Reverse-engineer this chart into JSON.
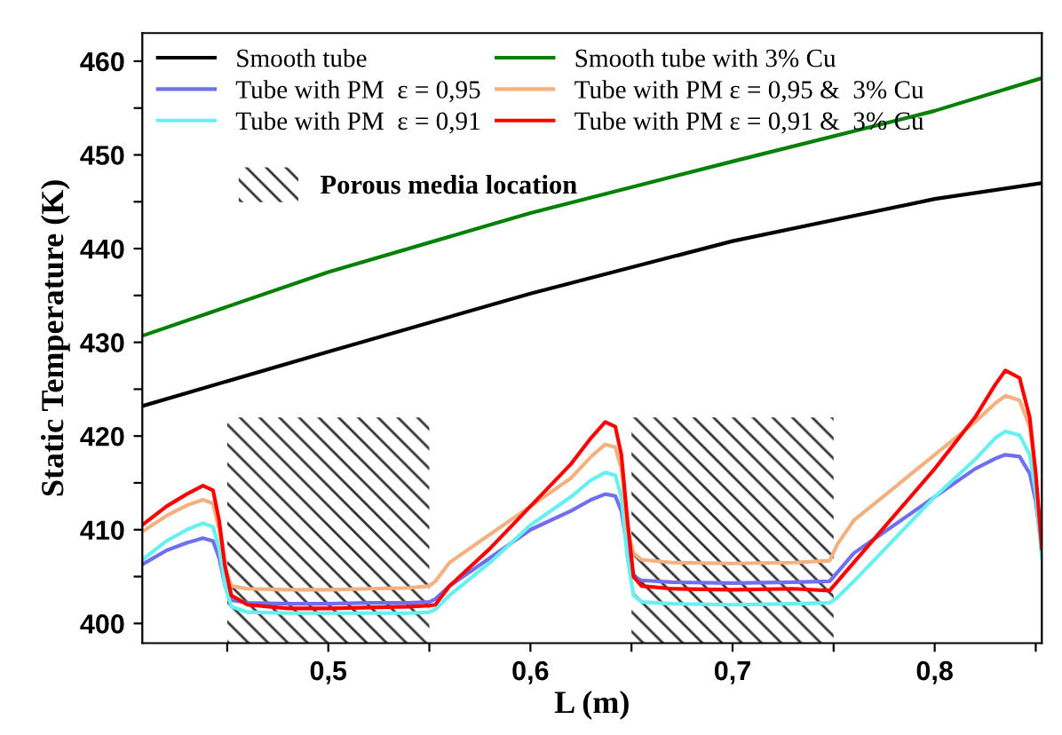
{
  "chart_data": {
    "type": "line",
    "xlabel": "L (m)",
    "ylabel": "Static Temperature (K)",
    "xlim": [
      0.408,
      0.853
    ],
    "ylim": [
      397.9,
      463
    ],
    "xticks": [
      {
        "value": 0.45,
        "label": null
      },
      {
        "value": 0.5,
        "label": "0,5"
      },
      {
        "value": 0.55,
        "label": null
      },
      {
        "value": 0.6,
        "label": "0,6"
      },
      {
        "value": 0.65,
        "label": null
      },
      {
        "value": 0.7,
        "label": "0,7"
      },
      {
        "value": 0.75,
        "label": null
      },
      {
        "value": 0.8,
        "label": "0,8"
      },
      {
        "value": 0.85,
        "label": null
      }
    ],
    "yticks": [
      400,
      {
        "value": 405,
        "label": null
      },
      410,
      {
        "value": 415,
        "label": null
      },
      420,
      {
        "value": 425,
        "label": null
      },
      430,
      {
        "value": 435,
        "label": null
      },
      440,
      {
        "value": 445,
        "label": null
      },
      450,
      {
        "value": 455,
        "label": null
      },
      460
    ],
    "legend": "top left",
    "grid": false,
    "marker": "none",
    "line_style": "solid",
    "bands": [
      {
        "axis": "x",
        "from": 0.45,
        "to": 0.55,
        "label": "Porous media location",
        "color": "#333333"
      },
      {
        "axis": "x",
        "from": 0.65,
        "to": 0.75,
        "label": null,
        "color": "#333333"
      }
    ],
    "x": [
      0.408,
      0.42,
      0.43,
      0.438,
      0.443,
      0.446,
      0.449,
      0.452,
      0.46,
      0.48,
      0.5,
      0.52,
      0.54,
      0.55,
      0.553,
      0.56,
      0.58,
      0.6,
      0.62,
      0.63,
      0.637,
      0.642,
      0.645,
      0.648,
      0.651,
      0.655,
      0.67,
      0.7,
      0.73,
      0.748,
      0.752,
      0.76,
      0.78,
      0.8,
      0.82,
      0.83,
      0.835,
      0.842,
      0.847,
      0.85,
      0.853
    ],
    "series": [
      {
        "name": "Smooth tube",
        "color": "#000000",
        "x": [
          0.408,
          0.5,
          0.6,
          0.7,
          0.8,
          0.853
        ],
        "values": [
          423.2,
          429,
          435.2,
          440.8,
          445.3,
          447
        ]
      },
      {
        "name": "Tube with PM  ε = 0,95",
        "color": "#6f6ff0",
        "values": [
          406.3,
          407.8,
          408.6,
          409.1,
          408.8,
          407,
          404,
          402.5,
          402.2,
          402.1,
          402.1,
          402.2,
          402.2,
          402.3,
          402.6,
          404,
          407,
          410,
          412,
          413.2,
          413.8,
          413.6,
          412,
          408,
          405,
          404.6,
          404.4,
          404.3,
          404.4,
          404.5,
          405.5,
          407.5,
          410.5,
          413.5,
          416.5,
          417.6,
          418,
          417.8,
          416,
          413,
          408
        ]
      },
      {
        "name": "Tube with PM  ε = 0,91",
        "color": "#66f0f0",
        "values": [
          406.8,
          408.8,
          410,
          410.7,
          410.3,
          408,
          404,
          401.8,
          401.2,
          401.1,
          401.1,
          401.1,
          401.1,
          401.2,
          401.5,
          403,
          406.5,
          410.5,
          413.5,
          415.3,
          416.1,
          415.8,
          413.5,
          407,
          403,
          402.3,
          402.1,
          402,
          402.1,
          402.2,
          402.8,
          404.5,
          409,
          413.5,
          417.5,
          419.8,
          420.5,
          420.1,
          418,
          414,
          407
        ]
      },
      {
        "name": "Smooth tube with 3% Cu",
        "color": "#008000",
        "x": [
          0.408,
          0.5,
          0.6,
          0.7,
          0.8,
          0.853
        ],
        "values": [
          430.7,
          437.5,
          443.8,
          449.3,
          454.7,
          458.2
        ]
      },
      {
        "name": "Tube with PM ε = 0,95 &  3% Cu",
        "color": "#f5b07f",
        "values": [
          409.8,
          411.5,
          412.6,
          413.2,
          412.8,
          410,
          406,
          404,
          403.7,
          403.6,
          403.6,
          403.7,
          403.8,
          404,
          404.5,
          406.5,
          409.5,
          412.5,
          415.5,
          417.8,
          419.1,
          418.8,
          416.5,
          410,
          407.5,
          406.8,
          406.5,
          406.4,
          406.5,
          406.7,
          408.5,
          411,
          414.5,
          418,
          421.5,
          423.5,
          424.3,
          423.8,
          421,
          416,
          null
        ]
      },
      {
        "name": "Tube with PM ε = 0,91 &  3% Cu",
        "color": "#ff0000",
        "values": [
          410.5,
          412.5,
          413.8,
          414.7,
          414.2,
          411,
          406,
          403,
          402,
          401.6,
          401.6,
          401.7,
          401.8,
          401.9,
          402,
          404,
          408,
          412.5,
          417,
          419.8,
          421.5,
          421,
          418,
          411,
          405,
          404,
          403.7,
          403.6,
          403.7,
          403.5,
          404.5,
          406.5,
          411.5,
          416.5,
          422,
          425.5,
          427,
          426.2,
          422,
          416,
          408
        ]
      }
    ]
  }
}
